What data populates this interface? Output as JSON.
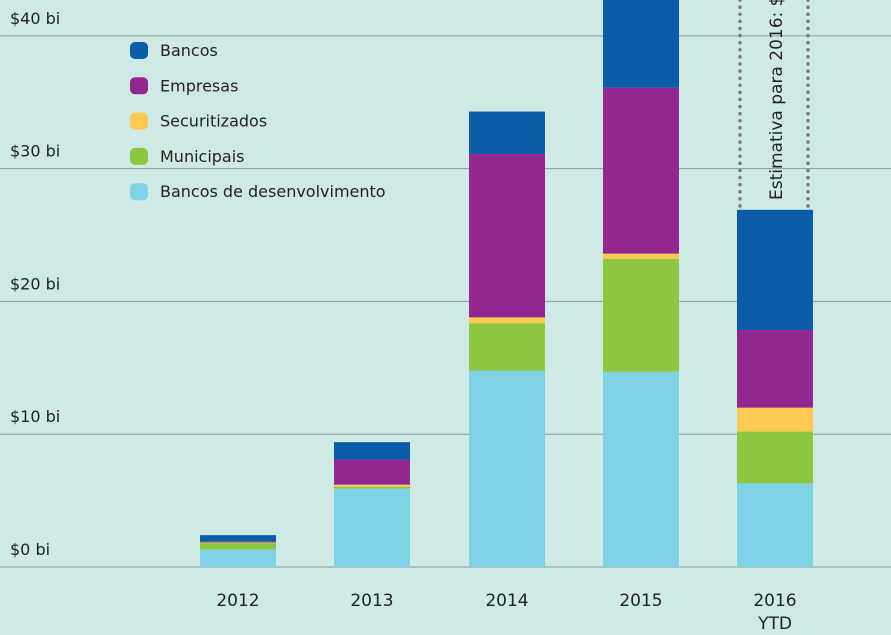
{
  "chart_data": {
    "type": "bar",
    "stacked": true,
    "categories": [
      "2012",
      "2013",
      "2014",
      "2015",
      "2016 YTD"
    ],
    "series": [
      {
        "name": "Bancos de desenvolvimento",
        "color": "#7fd2e6",
        "values": [
          1.3,
          5.9,
          14.8,
          14.7,
          6.3
        ]
      },
      {
        "name": "Municipais",
        "color": "#8dc641",
        "values": [
          0.5,
          0.15,
          3.55,
          8.5,
          3.9
        ]
      },
      {
        "name": "Securitizados",
        "color": "#fdc952",
        "values": [
          0.05,
          0.15,
          0.45,
          0.4,
          1.8
        ]
      },
      {
        "name": "Empresas",
        "color": "#92278f",
        "values": [
          0.05,
          1.9,
          12.3,
          12.5,
          5.85
        ]
      },
      {
        "name": "Bancos",
        "color": "#0a5ca8",
        "values": [
          0.5,
          1.3,
          3.2,
          7.5,
          9.05
        ]
      }
    ],
    "ylim": [
      0,
      42.7
    ],
    "yticks": [
      {
        "value": 0,
        "label": "$0 bi"
      },
      {
        "value": 10,
        "label": "$10 bi"
      },
      {
        "value": 20,
        "label": "$20 bi"
      },
      {
        "value": 30,
        "label": "$30 bi"
      },
      {
        "value": 40,
        "label": "$40 bi"
      }
    ],
    "grid": true,
    "annotation": "Estimativa para 2016: $"
  }
}
